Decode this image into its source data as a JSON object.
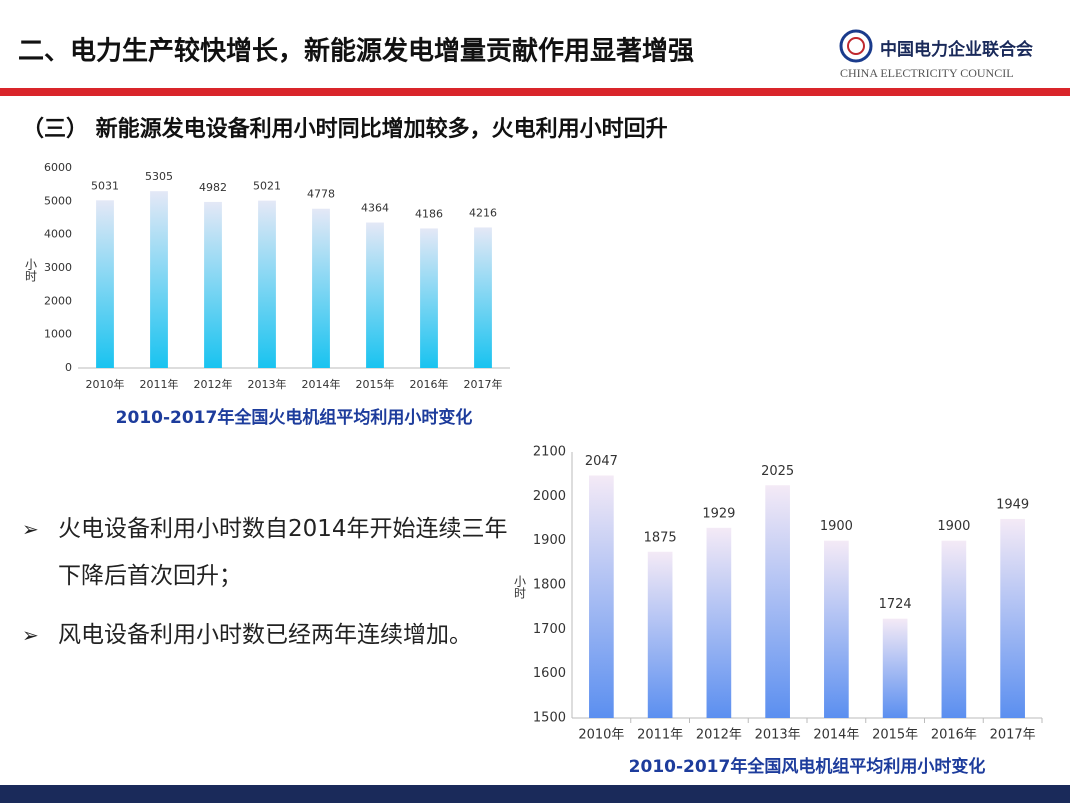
{
  "header": {
    "title": "二、电力生产较快增长，新能源发电增量贡献作用显著增强",
    "org_name": "中国电力企业联合会",
    "org_name_en": "CHINA ELECTRICITY COUNCIL"
  },
  "subtitle": "（三） 新能源发电设备利用小时同比增加较多，火电利用小时回升",
  "bullets": [
    "火电设备利用小时数自2014年开始连续三年下降后首次回升；",
    "风电设备利用小时数已经两年连续增加。"
  ],
  "chart_data": [
    {
      "type": "bar",
      "title": "2010-2017年全国火电机组平均利用小时变化",
      "ylabel": "小时",
      "categories": [
        "2010年",
        "2011年",
        "2012年",
        "2013年",
        "2014年",
        "2015年",
        "2016年",
        "2017年"
      ],
      "values": [
        5031,
        5305,
        4982,
        5021,
        4778,
        4364,
        4186,
        4216
      ],
      "color": "#19c3f0",
      "ylim": [
        0,
        6000
      ],
      "yticks": [
        0,
        1000,
        2000,
        3000,
        4000,
        5000,
        6000
      ],
      "grid": false
    },
    {
      "type": "bar",
      "title": "2010-2017年全国风电机组平均利用小时变化",
      "ylabel": "小时",
      "categories": [
        "2010年",
        "2011年",
        "2012年",
        "2013年",
        "2014年",
        "2015年",
        "2016年",
        "2017年"
      ],
      "values": [
        2047,
        1875,
        1929,
        2025,
        1900,
        1724,
        1900,
        1949
      ],
      "color": "#5b8ff0",
      "ylim": [
        1500,
        2100
      ],
      "yticks": [
        1500,
        1600,
        1700,
        1800,
        1900,
        2000,
        2100
      ],
      "grid": false
    }
  ]
}
